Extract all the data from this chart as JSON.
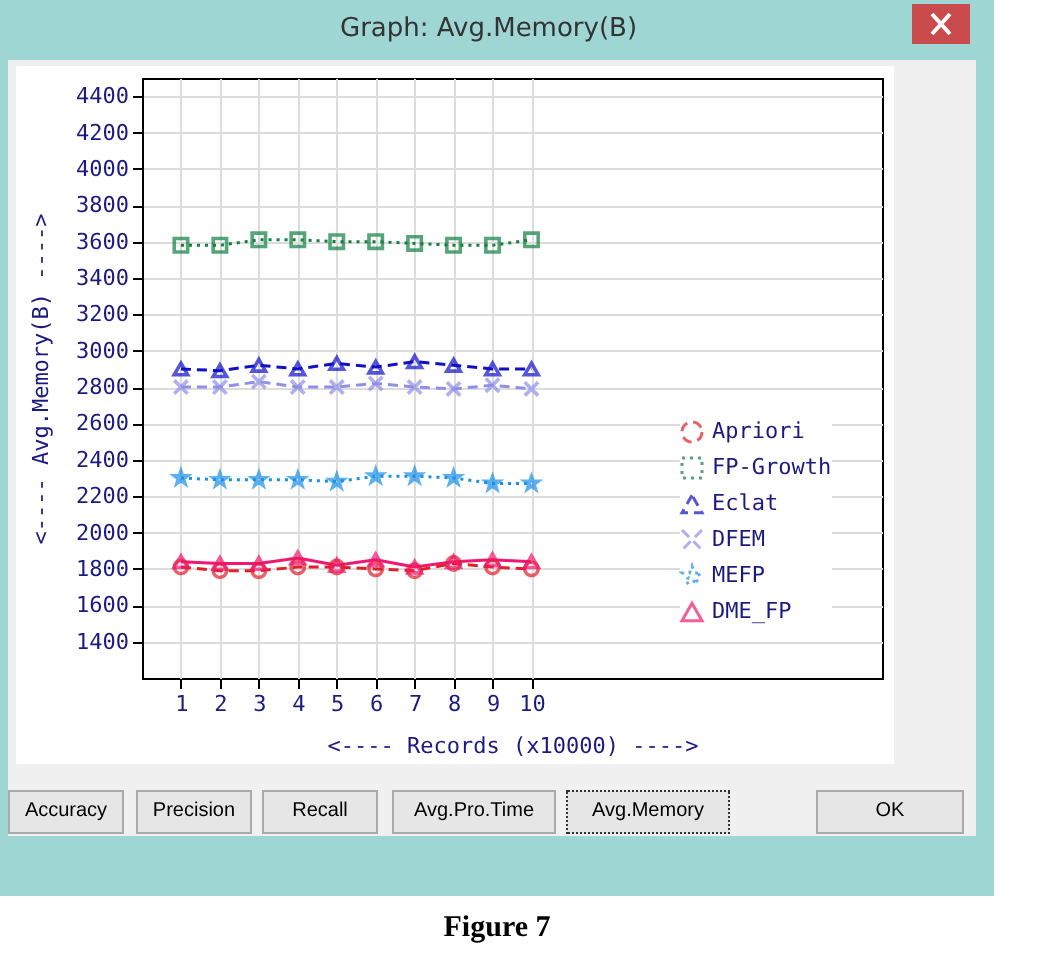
{
  "chart_data": {
    "type": "line",
    "title": "Graph: Avg.Memory(B)",
    "xlabel": "<---- Records (x10000) ---->",
    "ylabel": "<---- Avg.Memory(B) ---->",
    "x": [
      1,
      2,
      3,
      4,
      5,
      6,
      7,
      8,
      9,
      10
    ],
    "xlim": [
      0,
      19
    ],
    "xticks": [
      1,
      2,
      3,
      4,
      5,
      6,
      7,
      8,
      9,
      10
    ],
    "ylim": [
      1200,
      4500
    ],
    "yticks": [
      1400,
      1600,
      1800,
      2000,
      2200,
      2400,
      2600,
      2800,
      3000,
      3200,
      3400,
      3600,
      3800,
      4000,
      4200,
      4400
    ],
    "grid": true,
    "legend": "bottom right",
    "series": [
      {
        "name": "Apriori",
        "color": "#e0202a",
        "marker": "circle",
        "line_style": "dashed",
        "values": [
          1810,
          1790,
          1790,
          1810,
          1810,
          1800,
          1790,
          1830,
          1810,
          1800
        ]
      },
      {
        "name": "FP-Growth",
        "color": "#108040",
        "marker": "square",
        "line_style": "dotted",
        "values": [
          3580,
          3580,
          3610,
          3610,
          3600,
          3600,
          3590,
          3580,
          3580,
          3610
        ]
      },
      {
        "name": "Eclat",
        "color": "#1010c8",
        "marker": "triangle",
        "line_style": "dashed",
        "values": [
          2900,
          2890,
          2920,
          2900,
          2930,
          2910,
          2940,
          2920,
          2900,
          2900
        ]
      },
      {
        "name": "DFEM",
        "color": "#9090e8",
        "marker": "cross",
        "line_style": "dashed",
        "values": [
          2800,
          2800,
          2830,
          2800,
          2800,
          2820,
          2800,
          2790,
          2810,
          2790
        ]
      },
      {
        "name": "MEFP",
        "color": "#1890e8",
        "marker": "star",
        "line_style": "dotted",
        "values": [
          2300,
          2290,
          2290,
          2290,
          2280,
          2310,
          2310,
          2300,
          2270,
          2270
        ]
      },
      {
        "name": "DME_FP",
        "color": "#f01870",
        "marker": "triangle",
        "line_style": "solid",
        "values": [
          1840,
          1830,
          1830,
          1860,
          1820,
          1850,
          1810,
          1840,
          1850,
          1840
        ]
      }
    ],
    "annotations": [
      "Accuracy",
      "Precision",
      "Recall",
      "Avg.Pro.Time",
      "Avg.Memory",
      "OK",
      "Figure 7"
    ]
  }
}
